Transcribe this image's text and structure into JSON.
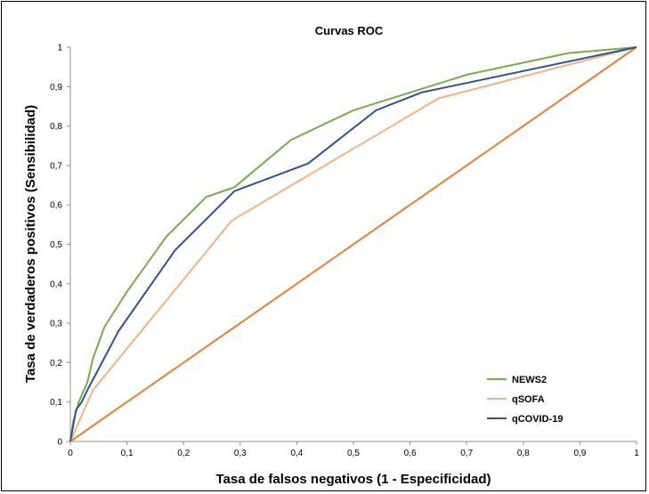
{
  "chart_data": {
    "type": "line",
    "title": "Curvas ROC",
    "xlabel": "Tasa de falsos negativos (1 - Especificidad)",
    "ylabel": "Tasa de verdaderos positivos (Sensibilidad)",
    "xlim": [
      0,
      1
    ],
    "ylim": [
      0,
      1
    ],
    "xticks": [
      "0",
      "0,1",
      "0,2",
      "0,3",
      "0,4",
      "0,5",
      "0,6",
      "0,7",
      "0,8",
      "0,9",
      "1"
    ],
    "yticks": [
      "0",
      "0,1",
      "0,2",
      "0,3",
      "0,4",
      "0,5",
      "0,6",
      "0,7",
      "0,8",
      "0,9",
      "1"
    ],
    "grid": false,
    "legend_position": "bottom-right",
    "series": [
      {
        "name": "NEWS2",
        "color": "#77ac4c",
        "x": [
          0,
          0.005,
          0.015,
          0.03,
          0.04,
          0.06,
          0.1,
          0.17,
          0.24,
          0.29,
          0.39,
          0.5,
          0.6,
          0.7,
          0.88,
          1
        ],
        "y": [
          0,
          0.05,
          0.1,
          0.15,
          0.21,
          0.29,
          0.38,
          0.52,
          0.62,
          0.645,
          0.765,
          0.84,
          0.885,
          0.93,
          0.985,
          1
        ]
      },
      {
        "name": "qSOFA",
        "color": "#f5b183",
        "x": [
          0,
          0.04,
          0.285,
          0.65,
          1
        ],
        "y": [
          0,
          0.13,
          0.56,
          0.87,
          1
        ]
      },
      {
        "name": "qCOVID-19",
        "color": "#2e5394",
        "x": [
          0,
          0.01,
          0.02,
          0.03,
          0.085,
          0.185,
          0.29,
          0.42,
          0.54,
          0.62,
          1
        ],
        "y": [
          0,
          0.08,
          0.1,
          0.13,
          0.28,
          0.485,
          0.635,
          0.705,
          0.84,
          0.885,
          1
        ]
      },
      {
        "name": "",
        "color": "#ed7d31",
        "x": [
          0,
          1
        ],
        "y": [
          0,
          1
        ]
      }
    ]
  }
}
